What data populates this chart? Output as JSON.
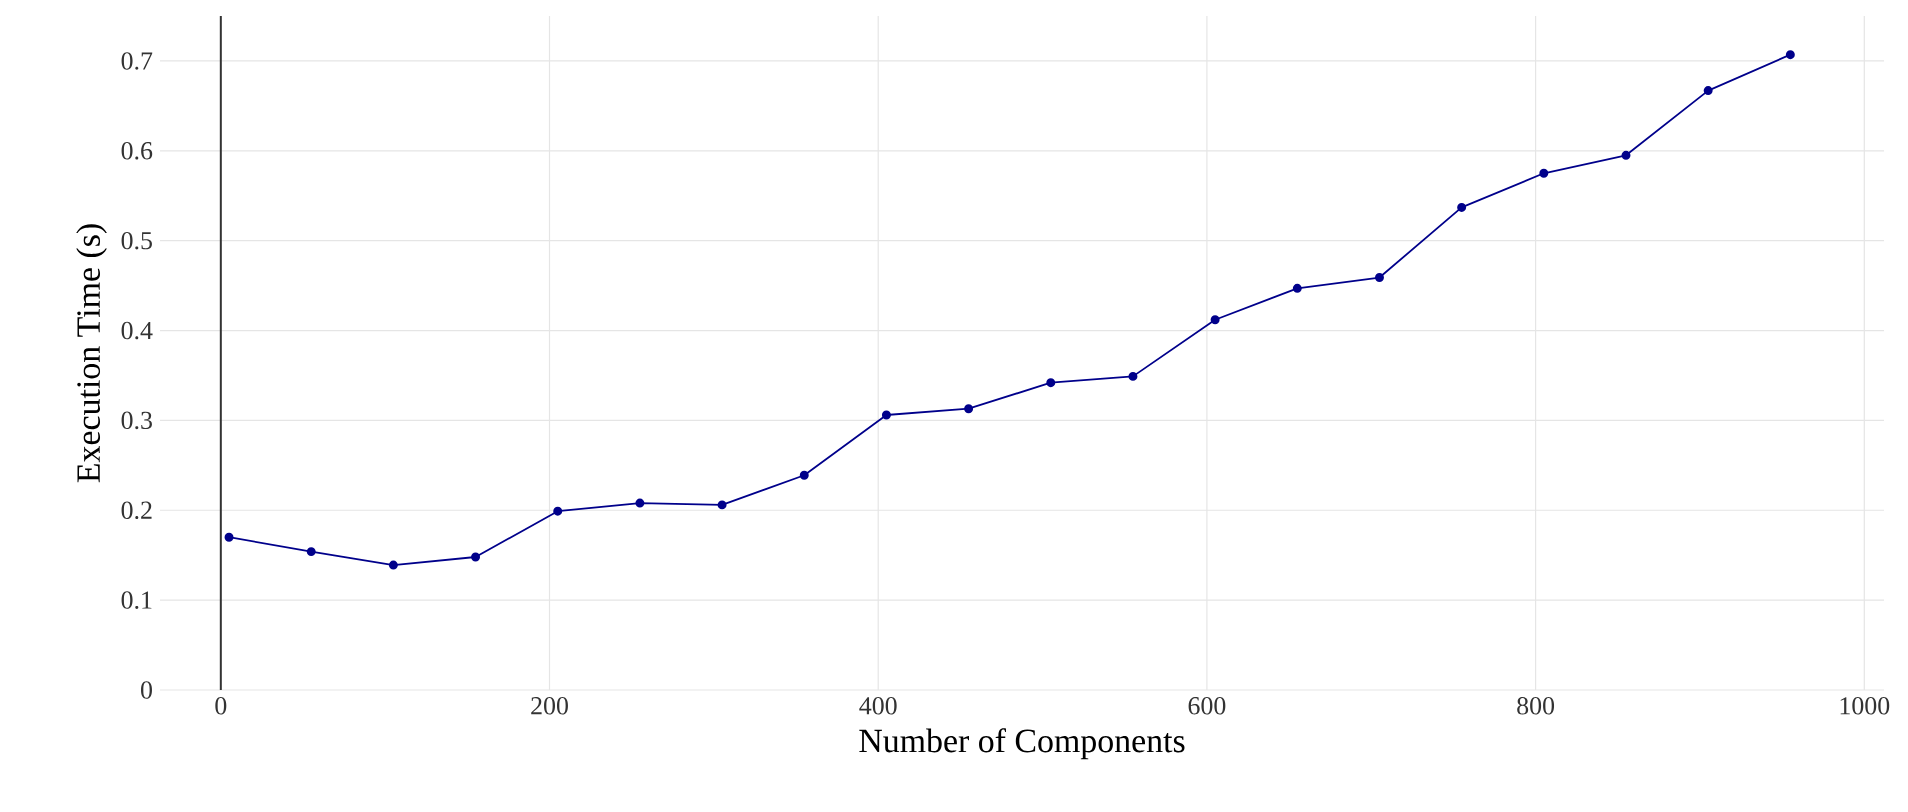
{
  "chart_data": {
    "type": "line",
    "xlabel": "Number of Components",
    "ylabel": "Execution Time (s)",
    "x": [
      5,
      55,
      105,
      155,
      205,
      255,
      305,
      355,
      405,
      455,
      505,
      555,
      605,
      655,
      705,
      755,
      805,
      855,
      905,
      955
    ],
    "series": [
      {
        "color": "#00008b",
        "values": [
          0.17,
          0.154,
          0.139,
          0.148,
          0.199,
          0.208,
          0.206,
          0.239,
          0.306,
          0.313,
          0.342,
          0.349,
          0.412,
          0.447,
          0.459,
          0.537,
          0.575,
          0.595,
          0.667,
          0.707
        ]
      }
    ],
    "xlim": [
      -37,
      1012
    ],
    "ylim": [
      0,
      0.75
    ],
    "xticks": [
      0,
      200,
      400,
      600,
      800,
      1000
    ],
    "yticks": [
      0,
      0.1,
      0.2,
      0.3,
      0.4,
      0.5,
      0.6,
      0.7
    ],
    "grid": true,
    "marker": "circle",
    "line_style": "solid"
  }
}
